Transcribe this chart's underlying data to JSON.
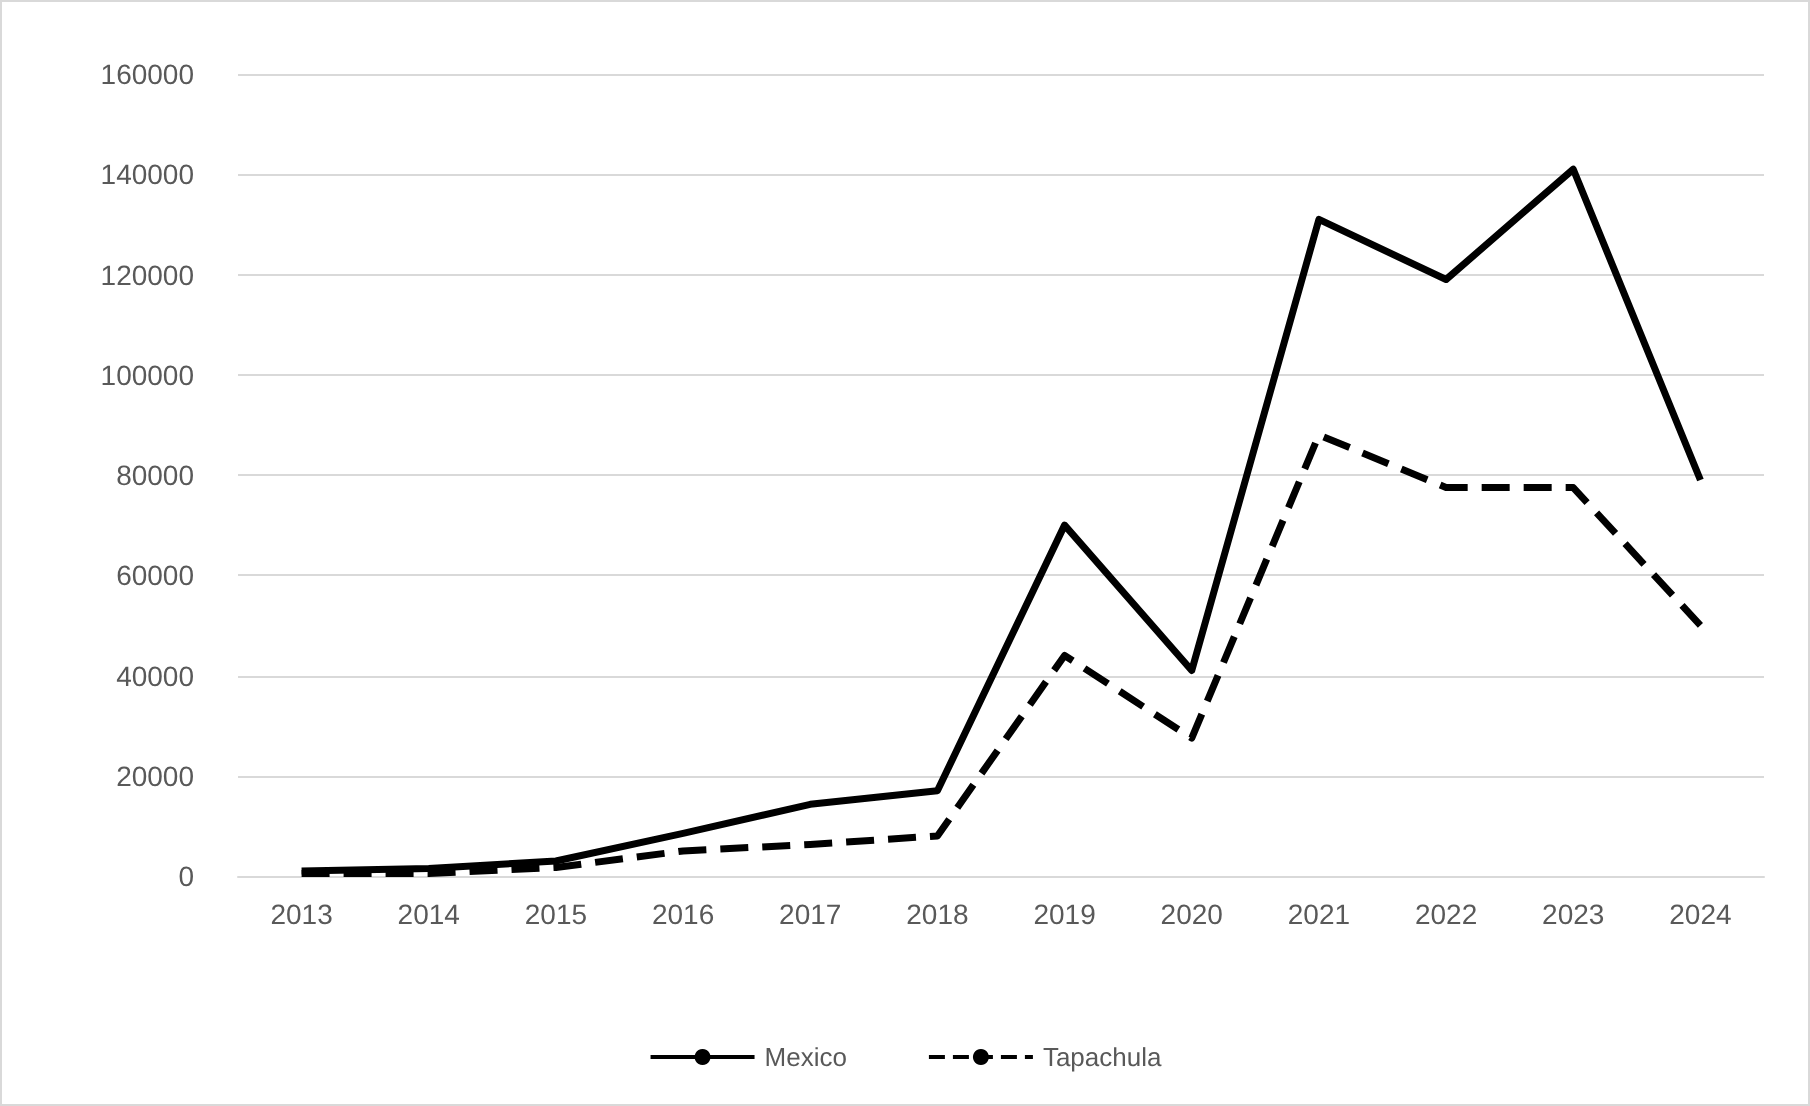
{
  "chart_data": {
    "type": "line",
    "categories": [
      "2013",
      "2014",
      "2015",
      "2016",
      "2017",
      "2018",
      "2019",
      "2020",
      "2021",
      "2022",
      "2023",
      "2024"
    ],
    "series": [
      {
        "name": "Mexico",
        "color": "#000000",
        "line_style": "solid",
        "values": [
          1000,
          1500,
          3000,
          8500,
          14300,
          17000,
          70000,
          41000,
          131000,
          119000,
          141000,
          79000
        ]
      },
      {
        "name": "Tapachula",
        "color": "#000000",
        "line_style": "dashed",
        "values": [
          500,
          500,
          1700,
          5000,
          6300,
          8000,
          44000,
          27500,
          88000,
          77500,
          77500,
          50000
        ]
      }
    ],
    "ylim": [
      0,
      160000
    ],
    "yticks": [
      0,
      20000,
      40000,
      60000,
      80000,
      100000,
      120000,
      140000,
      160000
    ],
    "grid": "y",
    "legend": "bottom",
    "marker": "none"
  }
}
